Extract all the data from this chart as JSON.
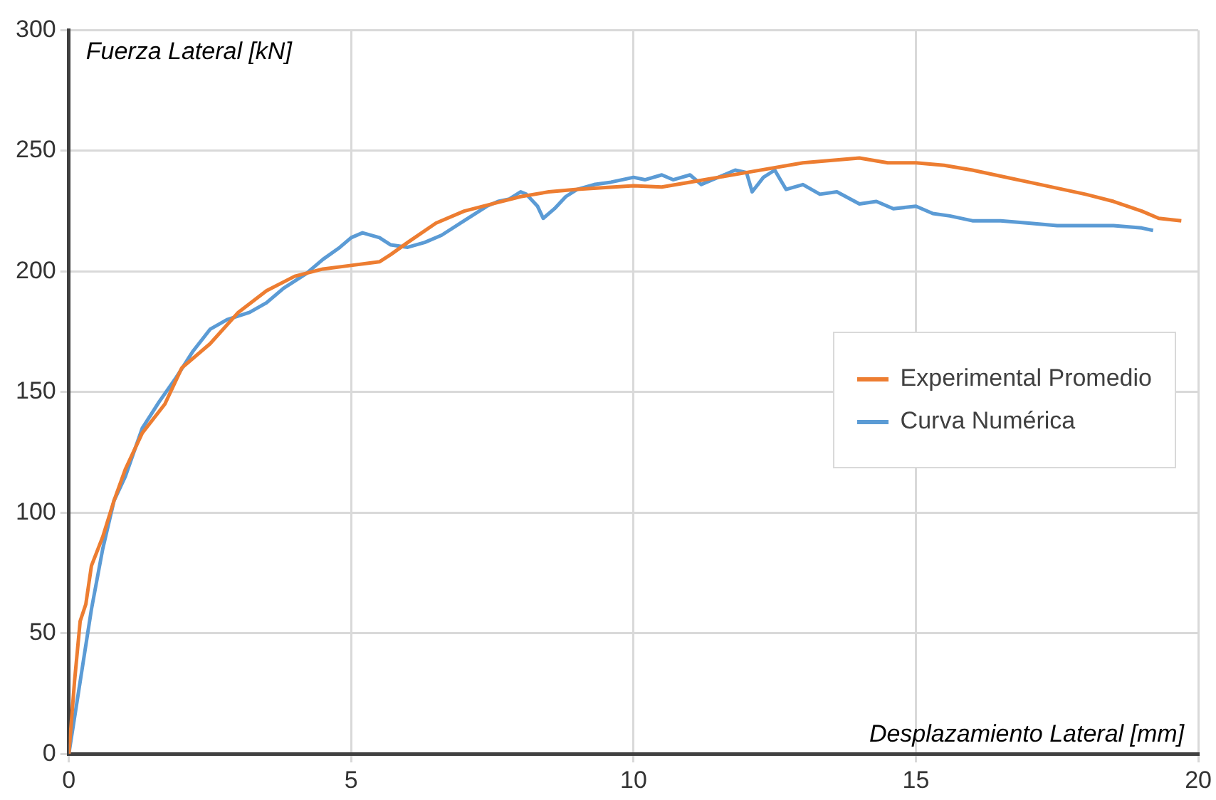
{
  "chart_data": {
    "type": "line",
    "xlabel": "Desplazamiento Lateral [mm]",
    "ylabel": "Fuerza Lateral [kN]",
    "xlim": [
      0,
      20
    ],
    "xticks": [
      0,
      5,
      10,
      15,
      20
    ],
    "ylim": [
      0,
      300
    ],
    "yticks": [
      0,
      50,
      100,
      150,
      200,
      250,
      300
    ],
    "grid": true,
    "legend": "right",
    "marker": "none",
    "line_style": "solid",
    "series": [
      {
        "name": "Experimental Promedio",
        "color": "#ed7d31",
        "x": [
          0,
          0.1,
          0.2,
          0.3,
          0.4,
          0.6,
          0.8,
          1,
          1.3,
          1.7,
          2,
          2.5,
          3,
          3.5,
          4,
          4.5,
          5,
          5.5,
          5.7,
          6,
          6.5,
          7,
          7.5,
          8,
          8.5,
          9,
          10,
          10.5,
          11,
          11.5,
          12,
          13,
          14,
          14.5,
          15,
          15.5,
          16,
          17,
          18,
          18.5,
          19,
          19.3,
          19.7
        ],
        "values": [
          0,
          30,
          55,
          62,
          78,
          90,
          105,
          118,
          133,
          145,
          160,
          170,
          183,
          192,
          198,
          201,
          202.5,
          204,
          207,
          212,
          220,
          225,
          228,
          231,
          233,
          234,
          235.5,
          235,
          237,
          239,
          241,
          245,
          247,
          245,
          245,
          244,
          242,
          237,
          232,
          229,
          225,
          222,
          221
        ]
      },
      {
        "name": "Curva Numérica",
        "color": "#5b9bd5",
        "x": [
          0,
          0.2,
          0.4,
          0.6,
          0.8,
          1,
          1.3,
          1.6,
          1.9,
          2.2,
          2.5,
          2.8,
          3.2,
          3.5,
          3.8,
          4.2,
          4.5,
          4.8,
          5,
          5.2,
          5.5,
          5.7,
          6,
          6.3,
          6.6,
          7,
          7.4,
          7.6,
          7.8,
          8,
          8.1,
          8.3,
          8.4,
          8.6,
          8.8,
          9,
          9.3,
          9.6,
          10,
          10.2,
          10.5,
          10.7,
          11,
          11.2,
          11.4,
          11.6,
          11.8,
          12,
          12.1,
          12.3,
          12.5,
          12.7,
          13,
          13.3,
          13.6,
          14,
          14.3,
          14.6,
          15,
          15.3,
          15.6,
          16,
          16.5,
          17,
          17.5,
          18,
          18.5,
          19,
          19.2
        ],
        "values": [
          0,
          30,
          60,
          85,
          105,
          115,
          135,
          146,
          156,
          167,
          176,
          180,
          183,
          187,
          193,
          199,
          205,
          210,
          214,
          216,
          214,
          211,
          210,
          212,
          215,
          221,
          227,
          229,
          230,
          233,
          232,
          227,
          222,
          226,
          231,
          234,
          236,
          237,
          239,
          238,
          240,
          238,
          240,
          236,
          238,
          240,
          242,
          241,
          233,
          239,
          242,
          234,
          236,
          232,
          233,
          228,
          229,
          226,
          227,
          224,
          223,
          221,
          221,
          220,
          219,
          219,
          219,
          218,
          217
        ]
      }
    ]
  }
}
